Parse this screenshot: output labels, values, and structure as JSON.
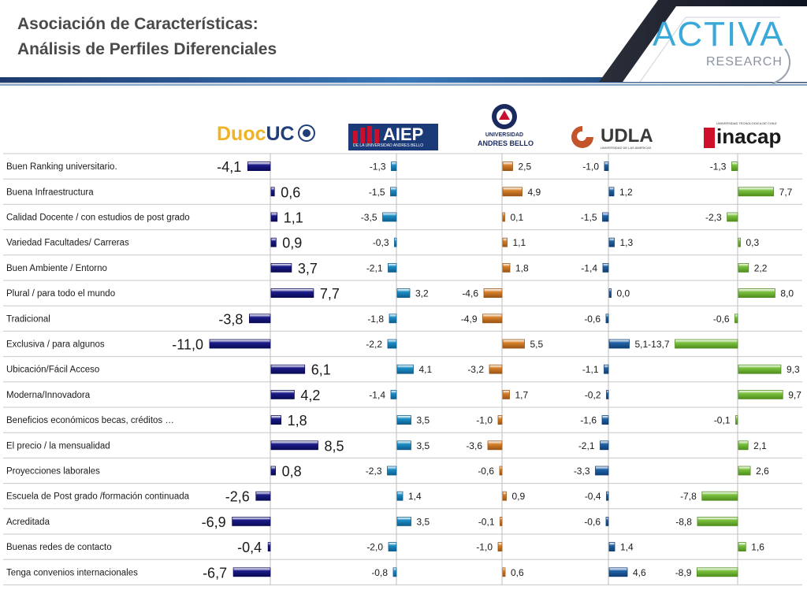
{
  "title": {
    "line1": "Asociación de Características:",
    "line2": "Análisis de Perfiles Diferenciales"
  },
  "brand": {
    "activa_logo_text": "ACTIVA",
    "activa_sub": "RESEARCH"
  },
  "institutions": [
    {
      "name": "DuocUC",
      "parts": [
        "Duoc",
        "UC"
      ],
      "color": "#1f3e7a",
      "accent": "#f0b323",
      "logo_icon": "seal-icon"
    },
    {
      "name": "AIEP",
      "sub": "DE LA UNIVERSIDAD ANDRES BELLO",
      "color": "#1b6aa5",
      "accent": "#c8102e",
      "logo_icon": "building-icon"
    },
    {
      "name": "UNIVERSIDAD ANDRES BELLO",
      "parts": [
        "UNIVERSIDAD",
        "ANDRES BELLO"
      ],
      "color": "#d97f2e",
      "accent": "#1a2a5e",
      "logo_icon": "crest-icon"
    },
    {
      "name": "UDLA",
      "sub": "UNIVERSIDAD DE LAS AMERICAS",
      "color": "#1f63a8",
      "accent": "#c4542a",
      "logo_icon": "swirl-icon"
    },
    {
      "name": "inacap",
      "sub": "UNIVERSIDAD TECNOLOGICA DE CHILE",
      "color": "#7dc241",
      "accent": "#d0102b",
      "logo_icon": "square-icon"
    }
  ],
  "chart_data": {
    "type": "bar",
    "orientation": "horizontal",
    "title": "",
    "categories": [
      "Buen Ranking universitario.",
      " Buena Infraestructura",
      "Calidad Docente / con estudios de post grado",
      "Variedad Facultades/ Carreras",
      "Buen Ambiente / Entorno",
      "Plural / para todo el mundo",
      "Tradicional",
      "Exclusiva / para algunos",
      "Ubicación/Fácil Acceso",
      "Moderna/Innovadora",
      "Beneficios económicos becas, créditos …",
      "El precio / la mensualidad",
      "Proyecciones laborales",
      "Escuela de Post grado /formación continuada",
      "Acreditada",
      "Buenas redes de contacto",
      "Tenga convenios internacionales"
    ],
    "series": [
      {
        "name": "DuocUC",
        "values": [
          -4.1,
          0.6,
          1.1,
          0.9,
          3.7,
          7.7,
          -3.8,
          -11.0,
          6.1,
          4.2,
          1.8,
          8.5,
          0.8,
          -2.6,
          -6.9,
          -0.4,
          -6.7
        ],
        "labels": [
          "-4,1",
          "0,6",
          "1,1",
          "0,9",
          "3,7",
          "7,7",
          "-3,8",
          "-11,0",
          "6,1",
          "4,2",
          "1,8",
          "8,5",
          "0,8",
          "-2,6",
          "-6,9",
          "-0,4",
          "-6,7"
        ]
      },
      {
        "name": "AIEP",
        "values": [
          -1.3,
          -1.5,
          -3.5,
          -0.3,
          -2.1,
          3.2,
          -1.8,
          -2.2,
          4.1,
          -1.4,
          3.5,
          3.5,
          -2.3,
          1.4,
          3.5,
          -2.0,
          -0.8
        ],
        "labels": [
          "-1,3",
          "-1,5",
          "-3,5",
          "-0,3",
          "-2,1",
          "3,2",
          "-1,8",
          "-2,2",
          "4,1",
          "-1,4",
          "3,5",
          "3,5",
          "-2,3",
          "1,4",
          "3,5",
          "-2,0",
          "-0,8"
        ]
      },
      {
        "name": "UNIVERSIDAD ANDRES BELLO",
        "values": [
          2.5,
          4.9,
          0.1,
          1.1,
          1.8,
          -4.6,
          -4.9,
          5.5,
          -3.2,
          1.7,
          -1.0,
          -3.6,
          -0.6,
          0.9,
          -0.1,
          -1.0,
          0.6
        ],
        "labels": [
          "2,5",
          "4,9",
          "0,1",
          "1,1",
          "1,8",
          "-4,6",
          "-4,9",
          "5,5",
          "-3,2",
          "1,7",
          "-1,0",
          "-3,6",
          "-0,6",
          "0,9",
          "-0,1",
          "-1,0",
          "0,6"
        ]
      },
      {
        "name": "UDLA",
        "values": [
          -1.0,
          1.2,
          -1.5,
          1.3,
          -1.4,
          0.0,
          -0.6,
          5.1,
          -1.1,
          -0.2,
          -1.6,
          -2.1,
          -3.3,
          -0.4,
          -0.6,
          1.4,
          4.6
        ],
        "labels": [
          "-1,0",
          "1,2",
          "-1,5",
          "1,3",
          "-1,4",
          "0,0",
          "-0,6",
          "5,1",
          "-1,1",
          "-0,2",
          "-1,6",
          "-2,1",
          "-3,3",
          "-0,4",
          "-0,6",
          "1,4",
          "4,6"
        ]
      },
      {
        "name": "inacap",
        "values": [
          -1.3,
          7.7,
          -2.3,
          0.3,
          2.2,
          8.0,
          -0.6,
          -13.7,
          9.3,
          9.7,
          -0.1,
          2.1,
          2.6,
          -7.8,
          -8.8,
          1.6,
          -8.9
        ],
        "labels": [
          "-1,3",
          "7,7",
          "-2,3",
          "0,3",
          "2,2",
          "8,0",
          "-0,6",
          "-13,7",
          "9,3",
          "9,7",
          "-0,1",
          "2,1",
          "2,6",
          "-7,8",
          "-8,8",
          "1,6",
          "-8,9"
        ]
      }
    ],
    "colors": [
      "#1c1c8a",
      "#1d8fc6",
      "#d9822b",
      "#1f63a8",
      "#7dc241"
    ],
    "grid": true,
    "legend": "none"
  }
}
